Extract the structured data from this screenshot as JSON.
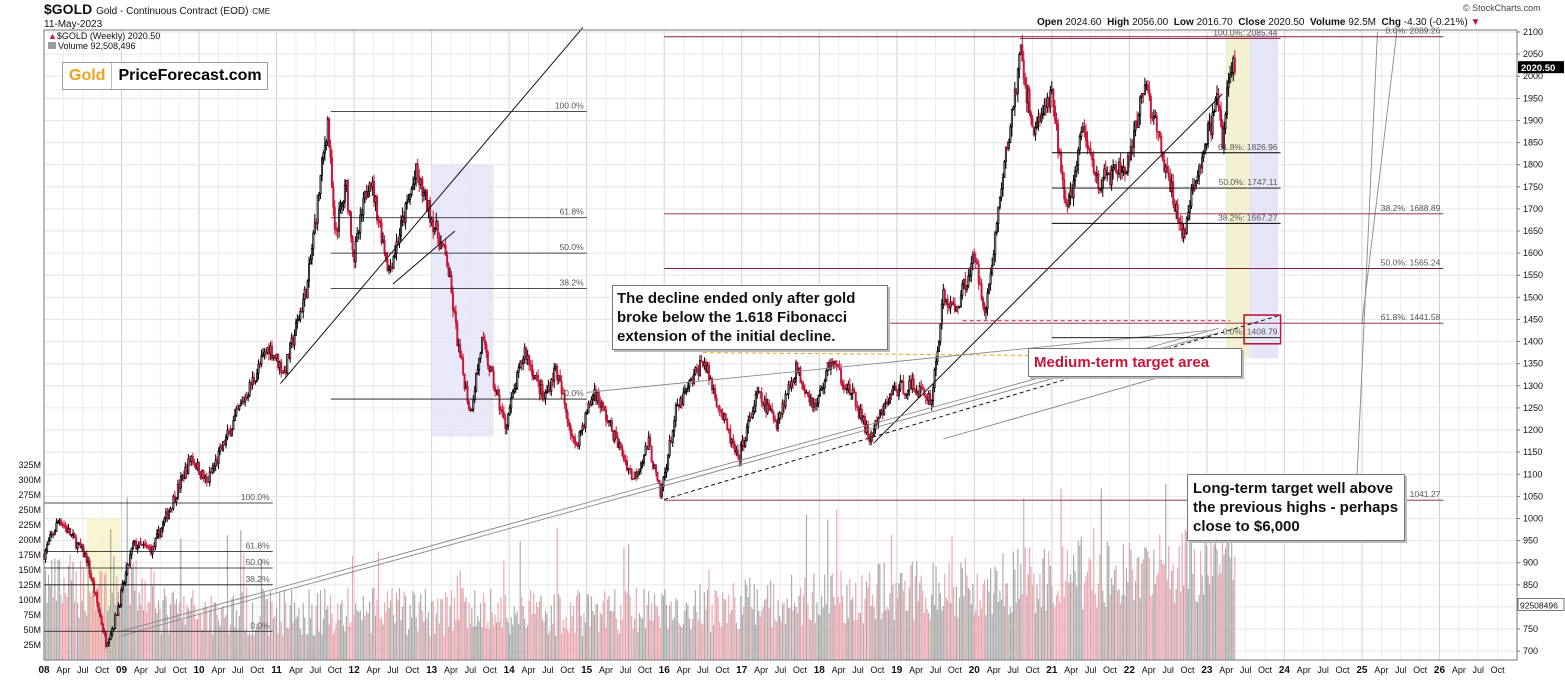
{
  "header": {
    "ticker": "$GOLD",
    "name": "Gold - Continuous Contract (EOD)",
    "exchange": "CME",
    "date": "11-May-2023",
    "legend_series": "$GOLD (Weekly) 2020.50",
    "legend_volume": "Volume 92,508,496",
    "ohlc": {
      "open_label": "Open",
      "open": "2024.60",
      "high_label": "High",
      "high": "2056.00",
      "low_label": "Low",
      "low": "2016.70",
      "close_label": "Close",
      "close": "2020.50",
      "volume_label": "Volume",
      "volume": "92.5M",
      "chg_label": "Chg",
      "chg": "-4.30 (-0.21%)"
    },
    "credit": "© StockCharts.com"
  },
  "logo": {
    "part1": "Gold",
    "part2": "PriceForecast.com"
  },
  "annotations": {
    "decline": "The decline ended only after gold broke below the 1.618 Fibonacci extension of the initial decline.",
    "medium": "Medium-term target area",
    "longterm": "Long-term target well above the previous highs - perhaps close to $6,000"
  },
  "colors": {
    "up": "#000000",
    "down": "#c8163a",
    "fib_right": "#8b1a3a",
    "vol_up": "#9e9e9e",
    "vol_down": "#e89aa4",
    "grid": "#e6e6e6"
  },
  "chart_data": {
    "type": "candlestick",
    "title": "$GOLD Gold - Continuous Contract (EOD)",
    "timeframe": "Weekly",
    "x_range": [
      "2008",
      "2026-12"
    ],
    "ylim": [
      680,
      2100
    ],
    "last_price": "2020.50",
    "y_ticks": [
      700,
      750,
      800,
      850,
      900,
      950,
      1000,
      1050,
      1100,
      1150,
      1200,
      1250,
      1300,
      1350,
      1400,
      1450,
      1500,
      1550,
      1600,
      1650,
      1700,
      1750,
      1800,
      1850,
      1900,
      1950,
      2000,
      2050,
      2100
    ],
    "volume_axis": {
      "ticks": [
        "25M",
        "50M",
        "75M",
        "100M",
        "125M",
        "150M",
        "175M",
        "200M",
        "225M",
        "250M",
        "275M",
        "300M",
        "325M"
      ],
      "last": "92508496"
    },
    "x_labels": [
      {
        "t": 2008.0,
        "label": "08",
        "major": true
      },
      {
        "t": 2008.25,
        "label": "Apr"
      },
      {
        "t": 2008.5,
        "label": "Jul"
      },
      {
        "t": 2008.75,
        "label": "Oct"
      },
      {
        "t": 2009.0,
        "label": "09",
        "major": true
      },
      {
        "t": 2009.25,
        "label": "Apr"
      },
      {
        "t": 2009.5,
        "label": "Jul"
      },
      {
        "t": 2009.75,
        "label": "Oct"
      },
      {
        "t": 2010.0,
        "label": "10",
        "major": true
      },
      {
        "t": 2010.25,
        "label": "Apr"
      },
      {
        "t": 2010.5,
        "label": "Jul"
      },
      {
        "t": 2010.75,
        "label": "Oct"
      },
      {
        "t": 2011.0,
        "label": "11",
        "major": true
      },
      {
        "t": 2011.25,
        "label": "Apr"
      },
      {
        "t": 2011.5,
        "label": "Jul"
      },
      {
        "t": 2011.75,
        "label": "Oct"
      },
      {
        "t": 2012.0,
        "label": "12",
        "major": true
      },
      {
        "t": 2012.25,
        "label": "Apr"
      },
      {
        "t": 2012.5,
        "label": "Jul"
      },
      {
        "t": 2012.75,
        "label": "Oct"
      },
      {
        "t": 2013.0,
        "label": "13",
        "major": true
      },
      {
        "t": 2013.25,
        "label": "Apr"
      },
      {
        "t": 2013.5,
        "label": "Jul"
      },
      {
        "t": 2013.75,
        "label": "Oct"
      },
      {
        "t": 2014.0,
        "label": "14",
        "major": true
      },
      {
        "t": 2014.25,
        "label": "Apr"
      },
      {
        "t": 2014.5,
        "label": "Jul"
      },
      {
        "t": 2014.75,
        "label": "Oct"
      },
      {
        "t": 2015.0,
        "label": "15",
        "major": true
      },
      {
        "t": 2015.25,
        "label": "Apr"
      },
      {
        "t": 2015.5,
        "label": "Jul"
      },
      {
        "t": 2015.75,
        "label": "Oct"
      },
      {
        "t": 2016.0,
        "label": "16",
        "major": true
      },
      {
        "t": 2016.25,
        "label": "Apr"
      },
      {
        "t": 2016.5,
        "label": "Jul"
      },
      {
        "t": 2016.75,
        "label": "Oct"
      },
      {
        "t": 2017.0,
        "label": "17",
        "major": true
      },
      {
        "t": 2017.25,
        "label": "Apr"
      },
      {
        "t": 2017.5,
        "label": "Jul"
      },
      {
        "t": 2017.75,
        "label": "Oct"
      },
      {
        "t": 2018.0,
        "label": "18",
        "major": true
      },
      {
        "t": 2018.25,
        "label": "Apr"
      },
      {
        "t": 2018.5,
        "label": "Jul"
      },
      {
        "t": 2018.75,
        "label": "Oct"
      },
      {
        "t": 2019.0,
        "label": "19",
        "major": true
      },
      {
        "t": 2019.25,
        "label": "Apr"
      },
      {
        "t": 2019.5,
        "label": "Jul"
      },
      {
        "t": 2019.75,
        "label": "Oct"
      },
      {
        "t": 2020.0,
        "label": "20",
        "major": true
      },
      {
        "t": 2020.25,
        "label": "Apr"
      },
      {
        "t": 2020.5,
        "label": "Jul"
      },
      {
        "t": 2020.75,
        "label": "Oct"
      },
      {
        "t": 2021.0,
        "label": "21",
        "major": true
      },
      {
        "t": 2021.25,
        "label": "Apr"
      },
      {
        "t": 2021.5,
        "label": "Jul"
      },
      {
        "t": 2021.75,
        "label": "Oct"
      },
      {
        "t": 2022.0,
        "label": "22",
        "major": true
      },
      {
        "t": 2022.25,
        "label": "Apr"
      },
      {
        "t": 2022.5,
        "label": "Jul"
      },
      {
        "t": 2022.75,
        "label": "Oct"
      },
      {
        "t": 2023.0,
        "label": "23",
        "major": true
      },
      {
        "t": 2023.25,
        "label": "Apr"
      },
      {
        "t": 2023.5,
        "label": "Jul"
      },
      {
        "t": 2023.75,
        "label": "Oct"
      },
      {
        "t": 2024.0,
        "label": "24",
        "major": true
      },
      {
        "t": 2024.25,
        "label": "Apr"
      },
      {
        "t": 2024.5,
        "label": "Jul"
      },
      {
        "t": 2024.75,
        "label": "Oct"
      },
      {
        "t": 2025.0,
        "label": "25",
        "major": true
      },
      {
        "t": 2025.25,
        "label": "Apr"
      },
      {
        "t": 2025.5,
        "label": "Jul"
      },
      {
        "t": 2025.75,
        "label": "Oct"
      },
      {
        "t": 2026.0,
        "label": "26",
        "major": true
      },
      {
        "t": 2026.25,
        "label": "Apr"
      },
      {
        "t": 2026.5,
        "label": "Jul"
      },
      {
        "t": 2026.75,
        "label": "Oct"
      }
    ],
    "anchors": [
      [
        2008.0,
        920
      ],
      [
        2008.2,
        1000
      ],
      [
        2008.55,
        910
      ],
      [
        2008.8,
        720
      ],
      [
        2008.9,
        760
      ],
      [
        2009.15,
        940
      ],
      [
        2009.4,
        930
      ],
      [
        2009.9,
        1140
      ],
      [
        2010.1,
        1080
      ],
      [
        2010.5,
        1240
      ],
      [
        2010.9,
        1390
      ],
      [
        2011.1,
        1330
      ],
      [
        2011.4,
        1530
      ],
      [
        2011.66,
        1900
      ],
      [
        2011.75,
        1640
      ],
      [
        2011.9,
        1750
      ],
      [
        2012.0,
        1590
      ],
      [
        2012.2,
        1780
      ],
      [
        2012.45,
        1560
      ],
      [
        2012.8,
        1780
      ],
      [
        2013.0,
        1680
      ],
      [
        2013.2,
        1580
      ],
      [
        2013.35,
        1380
      ],
      [
        2013.5,
        1240
      ],
      [
        2013.65,
        1400
      ],
      [
        2013.95,
        1210
      ],
      [
        2014.2,
        1380
      ],
      [
        2014.45,
        1270
      ],
      [
        2014.6,
        1340
      ],
      [
        2014.85,
        1160
      ],
      [
        2015.1,
        1290
      ],
      [
        2015.4,
        1170
      ],
      [
        2015.6,
        1090
      ],
      [
        2015.8,
        1170
      ],
      [
        2015.95,
        1050
      ],
      [
        2016.15,
        1240
      ],
      [
        2016.5,
        1360
      ],
      [
        2016.95,
        1130
      ],
      [
        2017.2,
        1280
      ],
      [
        2017.45,
        1220
      ],
      [
        2017.7,
        1340
      ],
      [
        2017.95,
        1250
      ],
      [
        2018.15,
        1360
      ],
      [
        2018.45,
        1270
      ],
      [
        2018.65,
        1180
      ],
      [
        2018.95,
        1290
      ],
      [
        2019.2,
        1300
      ],
      [
        2019.45,
        1270
      ],
      [
        2019.6,
        1500
      ],
      [
        2019.75,
        1470
      ],
      [
        2020.0,
        1590
      ],
      [
        2020.15,
        1470
      ],
      [
        2020.35,
        1750
      ],
      [
        2020.6,
        2050
      ],
      [
        2020.75,
        1880
      ],
      [
        2021.0,
        1950
      ],
      [
        2021.2,
        1690
      ],
      [
        2021.4,
        1880
      ],
      [
        2021.6,
        1760
      ],
      [
        2022.0,
        1800
      ],
      [
        2022.2,
        1990
      ],
      [
        2022.45,
        1800
      ],
      [
        2022.7,
        1640
      ],
      [
        2022.9,
        1800
      ],
      [
        2023.15,
        1950
      ],
      [
        2023.2,
        1840
      ],
      [
        2023.3,
        2020
      ],
      [
        2023.36,
        2020.5
      ]
    ],
    "volume_axis_max": 325,
    "fib_levels": [
      {
        "t0": 2020.59,
        "t1": 2023.95,
        "price": 2085.44,
        "label": "100.0%: 2085.44",
        "color": "#8b1a3a"
      },
      {
        "t0": 2021.0,
        "t1": 2023.95,
        "price": 1826.96,
        "label": "61.8%: 1826.96",
        "color": "#000"
      },
      {
        "t0": 2021.0,
        "t1": 2023.95,
        "price": 1747.11,
        "label": "50.0%: 1747.11",
        "color": "#000"
      },
      {
        "t0": 2021.0,
        "t1": 2023.95,
        "price": 1667.27,
        "label": "38.2%: 1667.27",
        "color": "#000"
      },
      {
        "t0": 2021.0,
        "t1": 2023.95,
        "price": 1408.79,
        "label": "0.0%: 1408.79",
        "color": "#000"
      }
    ],
    "long_fib_levels": [
      {
        "price": 2089.26,
        "label": "0.0%: 2089.26"
      },
      {
        "price": 1688.89,
        "label": "38.2%: 1688.89"
      },
      {
        "price": 1565.24,
        "label": "50.0%: 1565.24"
      },
      {
        "price": 1441.58,
        "label": "61.8%: 1441.58"
      },
      {
        "price": 1041.27,
        "label": "100.0%: 1041.27"
      }
    ],
    "fib_2011": [
      {
        "price": 1920,
        "label": "100.0%"
      },
      {
        "price": 1680,
        "label": "61.8%"
      },
      {
        "price": 1600,
        "label": "50.0%"
      },
      {
        "price": 1520,
        "label": "38.2%"
      },
      {
        "price": 1270,
        "label": "0.0%"
      }
    ],
    "fib_2008": [
      {
        "price": 1035,
        "label": "100.0%"
      },
      {
        "price": 925,
        "label": "61.8%"
      },
      {
        "price": 888,
        "label": "50.0%"
      },
      {
        "price": 850,
        "label": "38.2%"
      },
      {
        "price": 745,
        "label": "0.0%"
      }
    ]
  }
}
